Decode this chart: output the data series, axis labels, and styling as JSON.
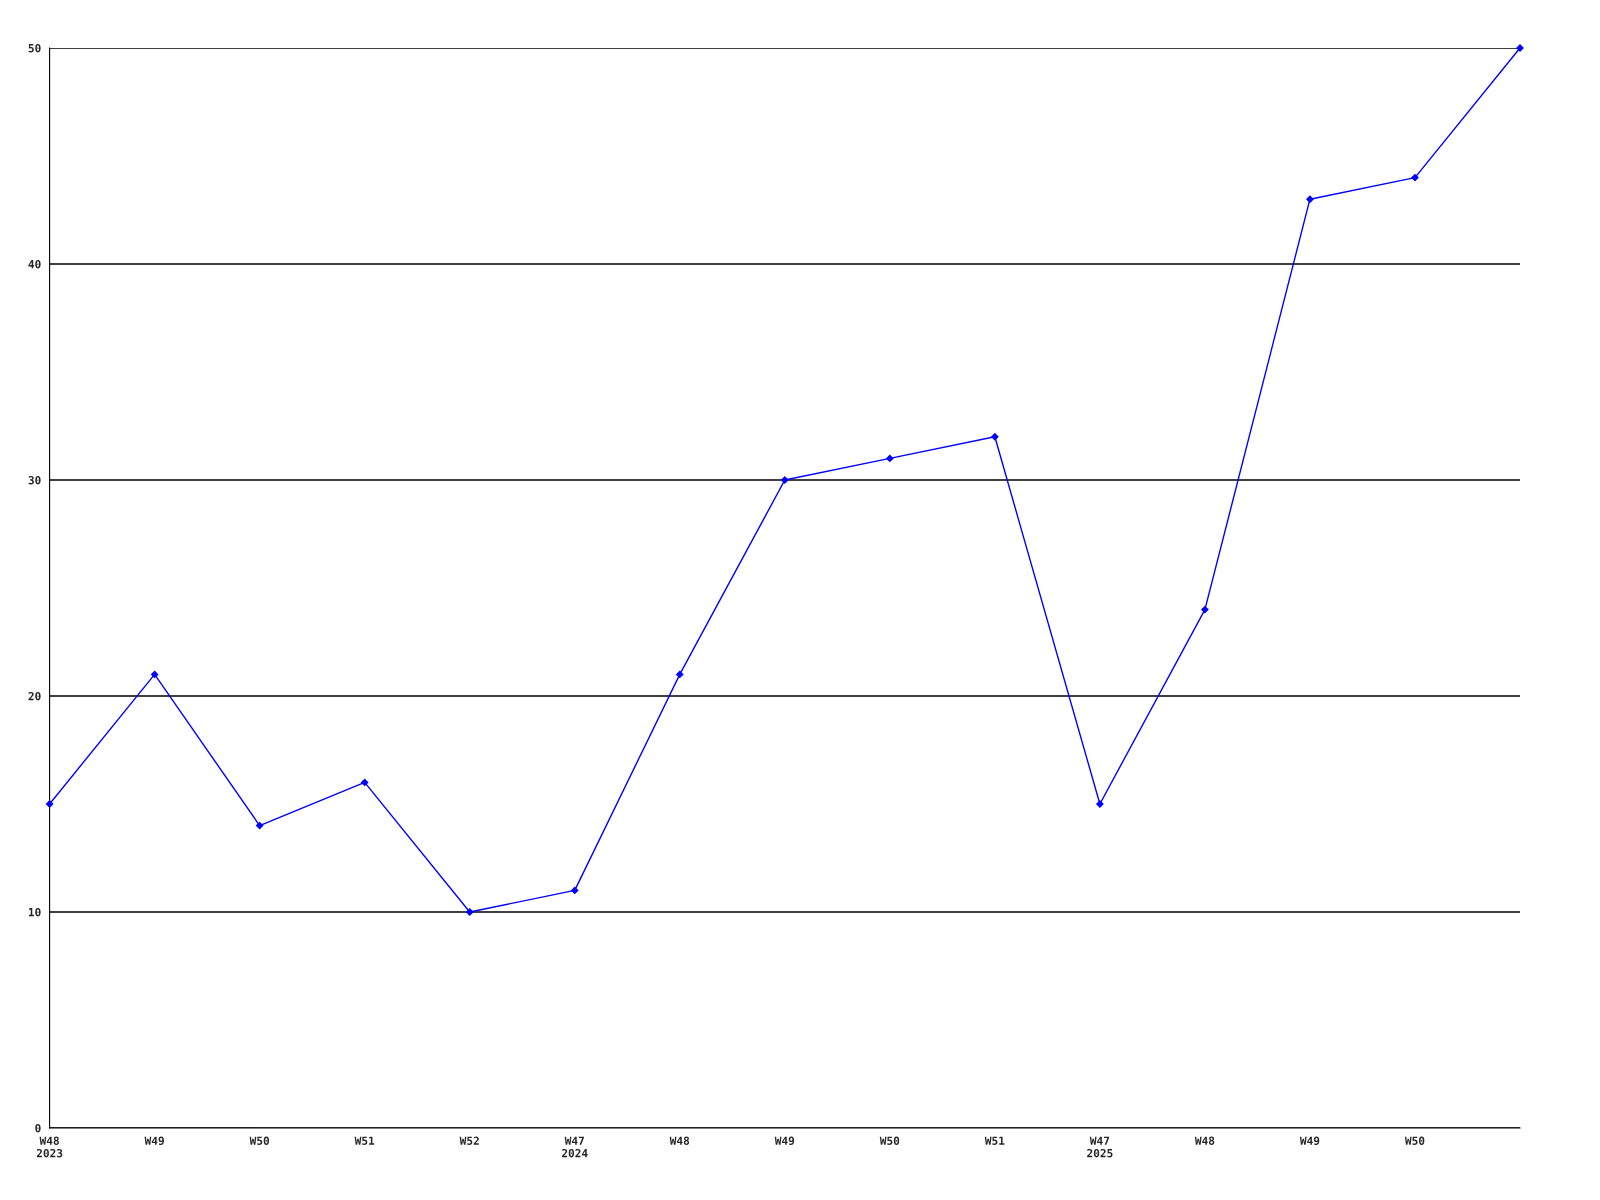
{
  "chart_data": {
    "type": "line",
    "categories": [
      "W48\n2023",
      "W49",
      "W50",
      "W51",
      "W52",
      "W47\n2024",
      "W48",
      "W49",
      "W50",
      "W51",
      "W47\n2025",
      "W48",
      "W49",
      "W50",
      null
    ],
    "series": [
      {
        "color": "#0000ff",
        "values": [
          15,
          21,
          14,
          16,
          10,
          11,
          21,
          30,
          31,
          32,
          15,
          24,
          43,
          44,
          50
        ]
      }
    ],
    "ylim": [
      0,
      50
    ],
    "yticks": [
      0,
      10,
      20,
      30,
      40,
      50
    ],
    "grid": "y",
    "marker": "diamond",
    "line_style": "solid",
    "legend": false
  }
}
